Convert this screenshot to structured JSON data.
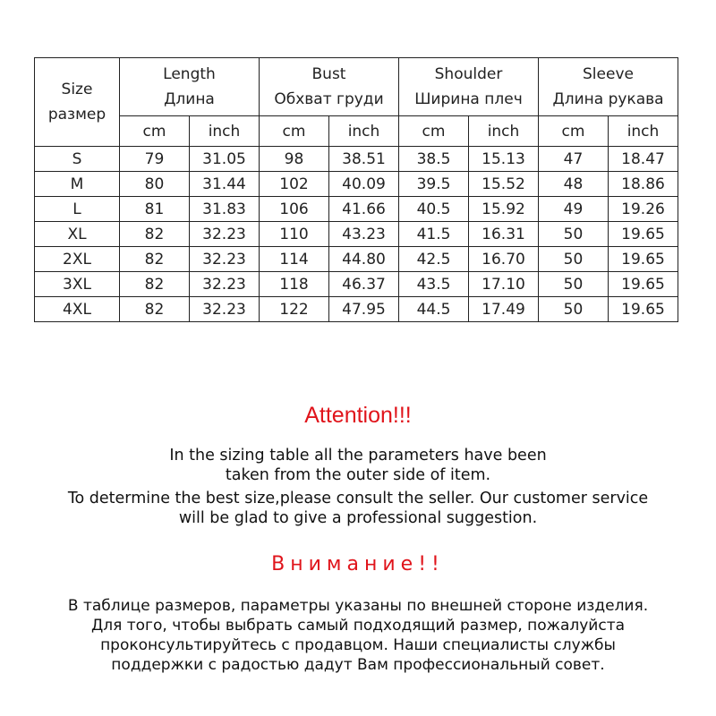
{
  "table": {
    "size_header": [
      "Size",
      "размер"
    ],
    "groups": [
      {
        "en": "Length",
        "ru": "Длина"
      },
      {
        "en": "Bust",
        "ru": "Обхват груди"
      },
      {
        "en": "Shoulder",
        "ru": "Ширина плеч"
      },
      {
        "en": "Sleeve",
        "ru": "Длина рукава"
      }
    ],
    "units": [
      "cm",
      "inch",
      "cm",
      "inch",
      "cm",
      "inch",
      "cm",
      "inch"
    ],
    "rows": [
      [
        "S",
        "79",
        "31.05",
        "98",
        "38.51",
        "38.5",
        "15.13",
        "47",
        "18.47"
      ],
      [
        "M",
        "80",
        "31.44",
        "102",
        "40.09",
        "39.5",
        "15.52",
        "48",
        "18.86"
      ],
      [
        "L",
        "81",
        "31.83",
        "106",
        "41.66",
        "40.5",
        "15.92",
        "49",
        "19.26"
      ],
      [
        "XL",
        "82",
        "32.23",
        "110",
        "43.23",
        "41.5",
        "16.31",
        "50",
        "19.65"
      ],
      [
        "2XL",
        "82",
        "32.23",
        "114",
        "44.80",
        "42.5",
        "16.70",
        "50",
        "19.65"
      ],
      [
        "3XL",
        "82",
        "32.23",
        "118",
        "46.37",
        "43.5",
        "17.10",
        "50",
        "19.65"
      ],
      [
        "4XL",
        "82",
        "32.23",
        "122",
        "47.95",
        "44.5",
        "17.49",
        "50",
        "19.65"
      ]
    ]
  },
  "notes": {
    "attention_en": "Attention!!!",
    "en_lines": [
      "In the sizing table all the parameters have been",
      "taken from the outer side of item.",
      "To determine the best size,please consult the seller. Our customer service",
      "will be glad to give a professional suggestion."
    ],
    "attention_ru": "Внимание!!",
    "ru_lines": [
      "В таблице размеров, параметры указаны по внешней стороне изделия.",
      "Для того, чтобы выбрать самый подходящий размер, пожалуйста",
      "проконсультируйтесь с продавцом. Наши специалисты службы",
      "поддержки с радостью дадут Вам профессиональный совет."
    ],
    "accent_color": "#e0141b"
  }
}
